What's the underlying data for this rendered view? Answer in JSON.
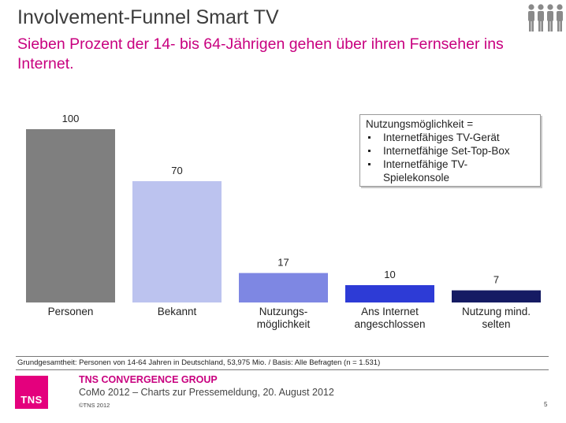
{
  "header": {
    "title": "Involvement-Funnel Smart TV",
    "subtitle": "Sieben Prozent der 14- bis 64-Jährigen gehen über ihren Fernseher ins Internet.",
    "icon": "people-group-icon"
  },
  "chart_data": {
    "type": "bar",
    "categories": [
      "Personen",
      "Bekannt",
      "Nutzungs-\nmöglichkeit",
      "Ans Internet\nangeschlossen",
      "Nutzung mind.\nselten"
    ],
    "values": [
      100,
      70,
      17,
      10,
      7
    ],
    "colors": [
      "#7f7f7f",
      "#bcc3ef",
      "#7e87e3",
      "#2d3bd6",
      "#151b63"
    ],
    "ylim": [
      0,
      100
    ],
    "grid": false,
    "title": "",
    "xlabel": "",
    "ylabel": ""
  },
  "legend": {
    "heading": "Nutzungsmöglichkeit =",
    "items": [
      "Internetfähiges TV-Gerät",
      "Internetfähige Set-Top-Box",
      "Internetfähige TV-\nSpielekonsole"
    ]
  },
  "footer": {
    "note": "Grundgesamtheit: Personen von 14-64 Jahren in Deutschland, 53,975 Mio. / Basis: Alle Befragten (n = 1.531)",
    "logo_text": "TNS",
    "group": "TNS CONVERGENCE GROUP",
    "event": "CoMo 2012 – Charts zur Pressemeldung, 20. August 2012",
    "copyright": "©TNS 2012",
    "page": "5"
  }
}
